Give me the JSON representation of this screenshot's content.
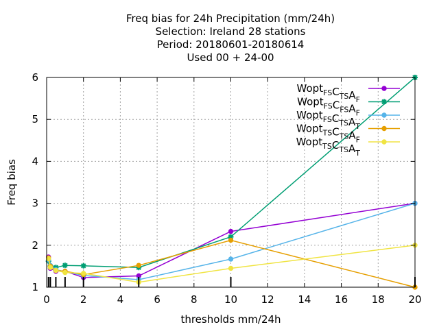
{
  "chart_data": {
    "type": "line",
    "title_lines": [
      "Freq bias  for 24h Precipitation (mm/24h)",
      "Selection: Ireland     28 stations",
      "Period: 20180601-20180614",
      "Used  00 + 24-00"
    ],
    "xlabel": "thresholds mm/24h",
    "ylabel": "Freq bias",
    "xlim": [
      0,
      20
    ],
    "ylim": [
      1,
      6
    ],
    "xticks": [
      0,
      2,
      4,
      6,
      8,
      10,
      12,
      14,
      16,
      18,
      20
    ],
    "yticks": [
      1,
      2,
      3,
      4,
      5,
      6
    ],
    "grid": true,
    "legend_position": "top-right",
    "x": [
      0.1,
      0.2,
      0.5,
      1,
      2,
      5,
      10,
      20
    ],
    "obs_marks_x": [
      0.1,
      0.2,
      0.5,
      1,
      2,
      5,
      10,
      20
    ],
    "series": [
      {
        "legend": {
          "parts": [
            [
              "Wopt",
              ""
            ],
            [
              "",
              "FS"
            ],
            [
              "C",
              ""
            ],
            [
              "",
              "TS"
            ],
            [
              "A",
              ""
            ],
            [
              "",
              "F"
            ]
          ]
        },
        "color": "#9400d3",
        "marker": "circle",
        "values": [
          1.72,
          1.45,
          1.38,
          1.38,
          1.23,
          1.27,
          2.33,
          3.0
        ]
      },
      {
        "legend": {
          "parts": [
            [
              "Wopt",
              ""
            ],
            [
              "",
              "FS"
            ],
            [
              "C",
              ""
            ],
            [
              "",
              "FS"
            ],
            [
              "A",
              ""
            ],
            [
              "",
              "F"
            ]
          ]
        },
        "color": "#009e73",
        "marker": "star",
        "values": [
          1.62,
          1.5,
          1.47,
          1.52,
          1.51,
          1.47,
          2.2,
          6.0
        ]
      },
      {
        "legend": {
          "parts": [
            [
              "Wopt",
              ""
            ],
            [
              "",
              "FS"
            ],
            [
              "C",
              ""
            ],
            [
              "",
              "TS"
            ],
            [
              "A",
              ""
            ],
            [
              "",
              "T"
            ]
          ]
        },
        "color": "#56b4e9",
        "marker": "circle",
        "values": [
          1.65,
          1.52,
          1.42,
          1.37,
          1.28,
          1.18,
          1.67,
          3.0
        ]
      },
      {
        "legend": {
          "parts": [
            [
              "Wopt",
              ""
            ],
            [
              "",
              "TS"
            ],
            [
              "C",
              ""
            ],
            [
              "",
              "TS"
            ],
            [
              "A",
              ""
            ],
            [
              "",
              "F"
            ]
          ]
        },
        "color": "#e69f00",
        "marker": "circle",
        "values": [
          1.7,
          1.5,
          1.4,
          1.38,
          1.3,
          1.52,
          2.12,
          1.0
        ]
      },
      {
        "legend": {
          "parts": [
            [
              "Wopt",
              ""
            ],
            [
              "",
              "TS"
            ],
            [
              "C",
              ""
            ],
            [
              "",
              "TS"
            ],
            [
              "A",
              ""
            ],
            [
              "",
              "T"
            ]
          ]
        },
        "color": "#f0e442",
        "marker": "circle",
        "values": [
          1.68,
          1.47,
          1.4,
          1.35,
          1.33,
          1.12,
          1.45,
          2.0
        ]
      }
    ]
  }
}
